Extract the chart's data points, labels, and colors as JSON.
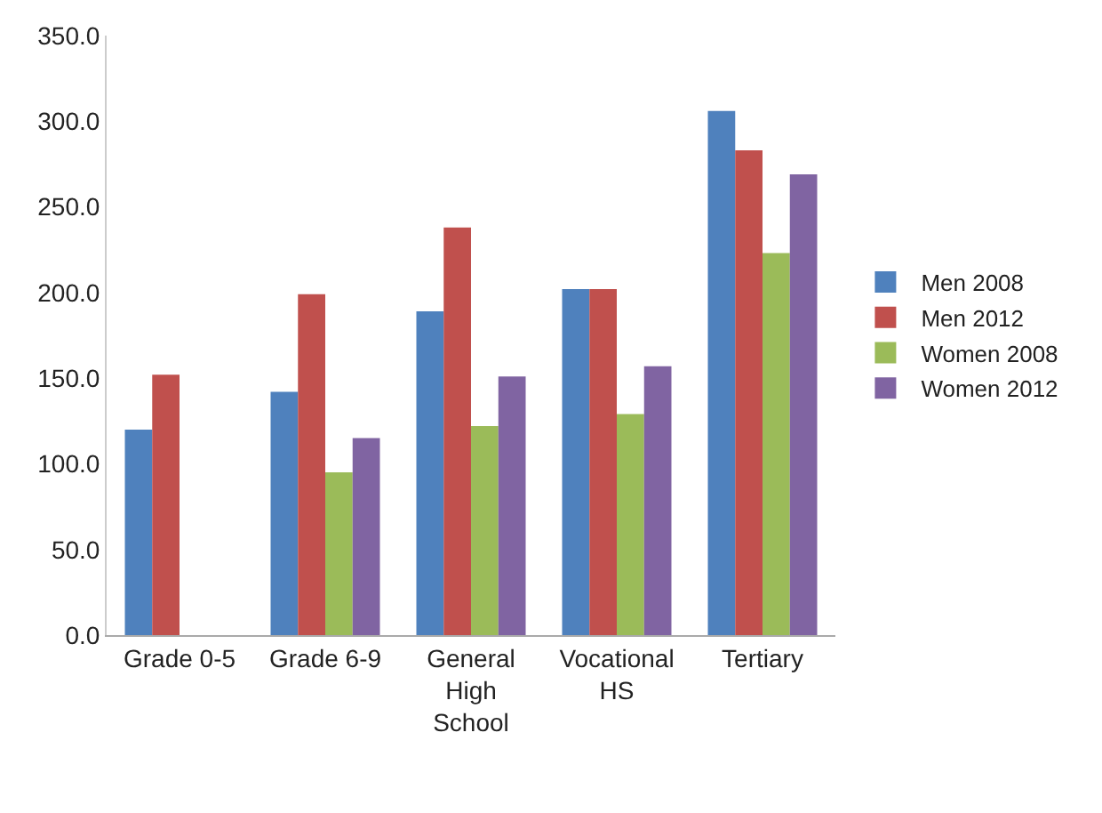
{
  "chart_data": {
    "type": "bar",
    "categories": [
      "Grade 0-5",
      "Grade 6-9",
      "General High School",
      "Vocational HS",
      "Tertiary"
    ],
    "series": [
      {
        "name": "Men 2008",
        "color": "#4f81bd",
        "values": [
          120,
          142,
          189,
          202,
          306
        ]
      },
      {
        "name": "Men 2012",
        "color": "#c0504d",
        "values": [
          152,
          199,
          238,
          202,
          283
        ]
      },
      {
        "name": "Women 2008",
        "color": "#9bbb59",
        "values": [
          null,
          95,
          122,
          129,
          223
        ]
      },
      {
        "name": "Women 2012",
        "color": "#8064a2",
        "values": [
          null,
          115,
          151,
          157,
          269
        ]
      }
    ],
    "ylim": [
      0,
      350
    ],
    "yticks": [
      {
        "value": 0,
        "label": "0.0"
      },
      {
        "value": 50,
        "label": "50.0"
      },
      {
        "value": 100,
        "label": "100.0"
      },
      {
        "value": 150,
        "label": "150.0"
      },
      {
        "value": 200,
        "label": "200.0"
      },
      {
        "value": 250,
        "label": "250.0"
      },
      {
        "value": 300,
        "label": "300.0"
      },
      {
        "value": 350,
        "label": "350.0"
      }
    ],
    "legend": "right"
  }
}
